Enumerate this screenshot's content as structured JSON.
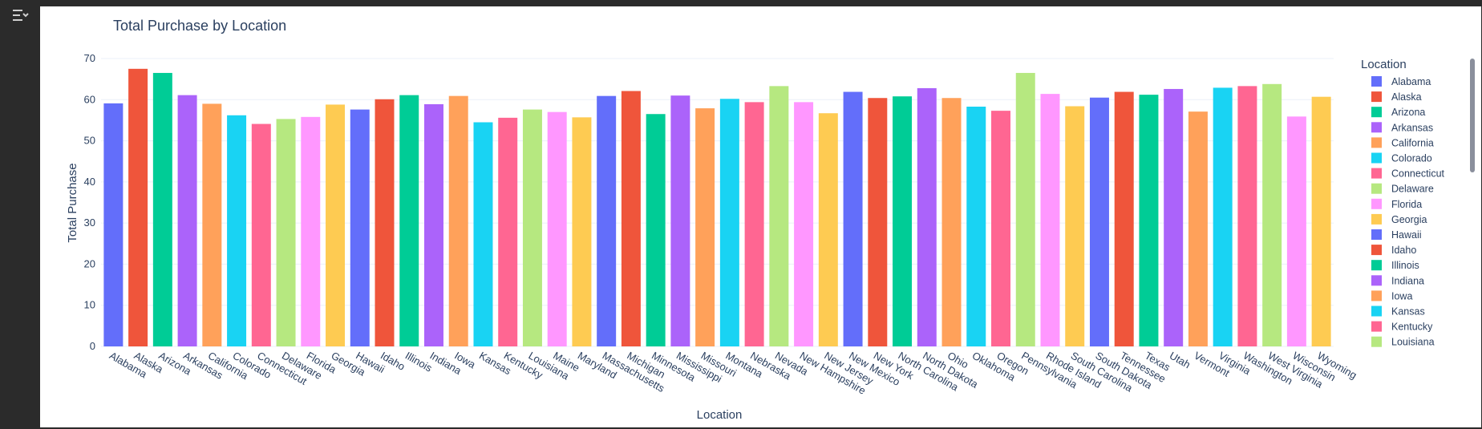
{
  "sidebar": {
    "toggle_icon": "panel-toggle-icon"
  },
  "chart_data": {
    "type": "bar",
    "title": "Total Purchase by Location",
    "xlabel": "Location",
    "ylabel": "Total Purchase",
    "ylim": [
      0,
      70
    ],
    "yticks": [
      0,
      10,
      20,
      30,
      40,
      50,
      60,
      70
    ],
    "grid": true,
    "legend_title": "Location",
    "legend_placement": "right",
    "palette": [
      "#636efa",
      "#ef553b",
      "#00cc96",
      "#ab63fa",
      "#ffa15a",
      "#19d3f3",
      "#ff6692",
      "#b6e880",
      "#ff97ff",
      "#fecb52"
    ],
    "categories": [
      "Alabama",
      "Alaska",
      "Arizona",
      "Arkansas",
      "California",
      "Colorado",
      "Connecticut",
      "Delaware",
      "Florida",
      "Georgia",
      "Hawaii",
      "Idaho",
      "Illinois",
      "Indiana",
      "Iowa",
      "Kansas",
      "Kentucky",
      "Louisiana",
      "Maine",
      "Maryland",
      "Massachusetts",
      "Michigan",
      "Minnesota",
      "Mississippi",
      "Missouri",
      "Montana",
      "Nebraska",
      "Nevada",
      "New Hampshire",
      "New Jersey",
      "New Mexico",
      "New York",
      "North Carolina",
      "North Dakota",
      "Ohio",
      "Oklahoma",
      "Oregon",
      "Pennsylvania",
      "Rhode Island",
      "South Carolina",
      "South Dakota",
      "Tennessee",
      "Texas",
      "Utah",
      "Vermont",
      "Virginia",
      "Washington",
      "West Virginia",
      "Wisconsin",
      "Wyoming"
    ],
    "values": [
      59.1,
      67.5,
      66.5,
      61.1,
      59.0,
      56.2,
      54.1,
      55.3,
      55.8,
      58.8,
      57.6,
      60.1,
      61.1,
      58.9,
      60.9,
      54.5,
      55.6,
      57.6,
      57.0,
      55.7,
      60.9,
      62.1,
      56.5,
      61.0,
      57.9,
      60.2,
      59.4,
      63.3,
      59.4,
      56.7,
      61.9,
      60.4,
      60.8,
      62.8,
      60.4,
      58.3,
      57.3,
      66.5,
      61.4,
      58.4,
      60.5,
      61.9,
      61.2,
      62.6,
      57.1,
      62.9,
      63.3,
      63.8,
      55.9,
      60.7
    ],
    "legend_visible": [
      "Alabama",
      "Alaska",
      "Arizona",
      "Arkansas",
      "California",
      "Colorado",
      "Connecticut",
      "Delaware",
      "Florida",
      "Georgia",
      "Hawaii",
      "Idaho",
      "Illinois",
      "Indiana",
      "Iowa",
      "Kansas",
      "Kentucky",
      "Louisiana"
    ]
  }
}
